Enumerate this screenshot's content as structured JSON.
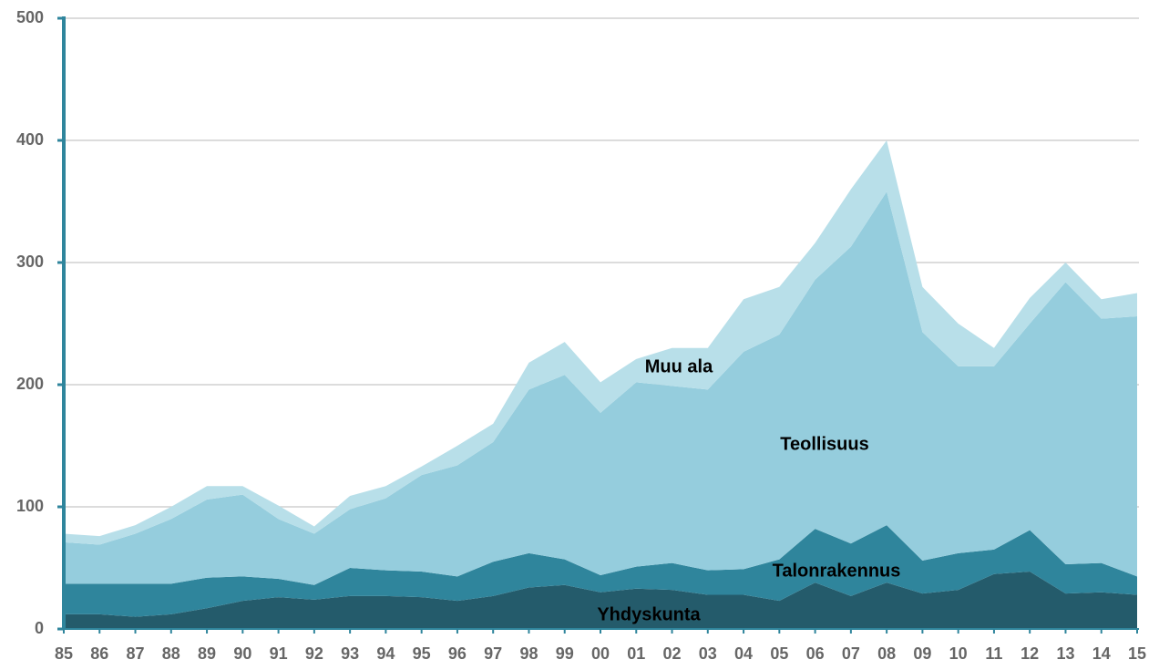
{
  "chart_data": {
    "type": "area",
    "categories": [
      "85",
      "86",
      "87",
      "88",
      "89",
      "90",
      "91",
      "92",
      "93",
      "94",
      "95",
      "96",
      "97",
      "98",
      "99",
      "00",
      "01",
      "02",
      "03",
      "04",
      "05",
      "06",
      "07",
      "08",
      "09",
      "10",
      "11",
      "12",
      "13",
      "14",
      "15"
    ],
    "series": [
      {
        "name": "Yhdyskunta",
        "color": "#245b6b",
        "values": [
          12,
          12,
          10,
          12,
          17,
          23,
          26,
          24,
          27,
          27,
          26,
          23,
          27,
          34,
          36,
          30,
          33,
          32,
          28,
          28,
          23,
          38,
          27,
          38,
          29,
          32,
          45,
          47,
          29,
          30,
          28
        ]
      },
      {
        "name": "Talonrakennus",
        "color": "#2f859c",
        "values": [
          25,
          25,
          27,
          25,
          25,
          20,
          15,
          12,
          23,
          21,
          21,
          20,
          28,
          28,
          21,
          14,
          18,
          22,
          20,
          21,
          34,
          44,
          43,
          47,
          27,
          30,
          20,
          34,
          24,
          24,
          15
        ]
      },
      {
        "name": "Teollisuus",
        "color": "#95cddd",
        "values": [
          34,
          32,
          41,
          53,
          64,
          67,
          49,
          42,
          48,
          59,
          79,
          91,
          98,
          134,
          151,
          133,
          151,
          145,
          148,
          178,
          184,
          204,
          243,
          273,
          187,
          153,
          150,
          169,
          231,
          200,
          213
        ]
      },
      {
        "name": "Muu ala",
        "color": "#b8dfe9",
        "values": [
          7,
          7,
          7,
          10,
          11,
          7,
          11,
          6,
          11,
          10,
          7,
          16,
          15,
          22,
          27,
          25,
          19,
          31,
          34,
          43,
          39,
          30,
          47,
          42,
          37,
          35,
          15,
          21,
          16,
          16,
          19
        ]
      }
    ],
    "stacked": true,
    "ylim": [
      0,
      500
    ],
    "yticks": [
      0,
      100,
      200,
      300,
      400,
      500
    ],
    "grid": true
  }
}
